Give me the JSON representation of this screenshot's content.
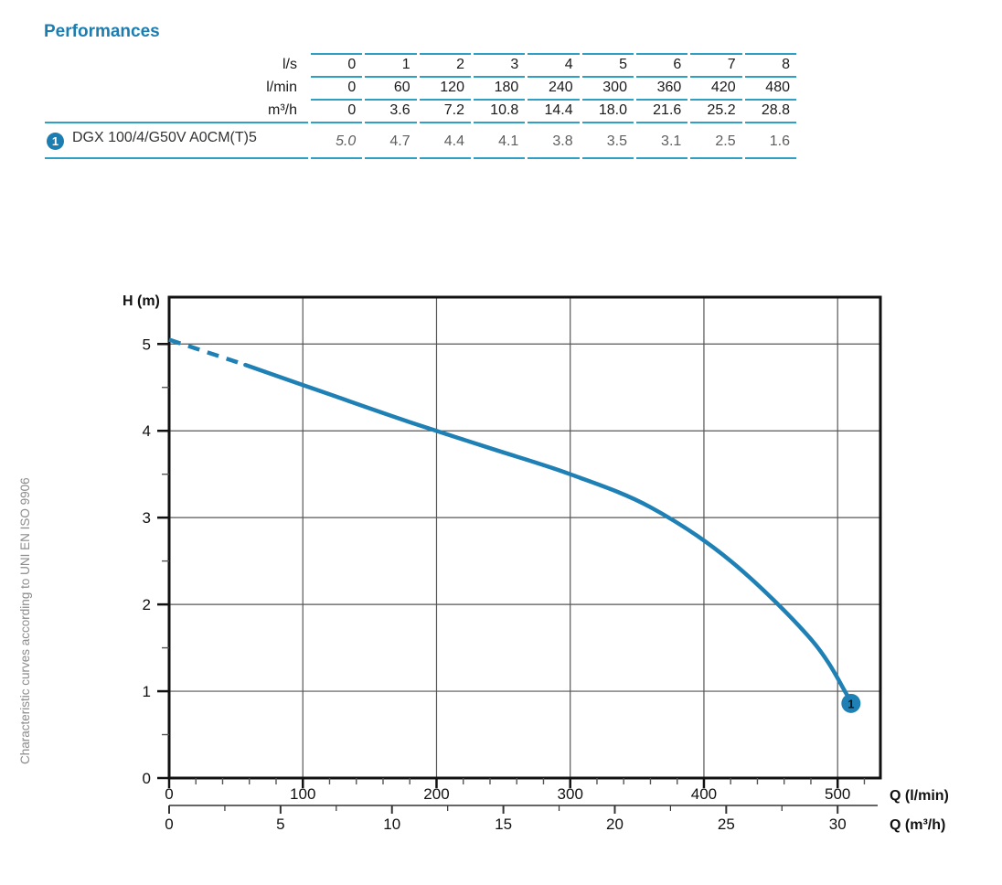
{
  "page": {
    "title": "Performances"
  },
  "side_note": "Characteristic curves according to UNI EN ISO 9906",
  "colors": {
    "accent": "#1c7db1",
    "table_line": "#2f9fc4",
    "curve": "#1e80b4",
    "grid": "#565656",
    "axis": "#111111",
    "pump_values_text": "#5e5e5e",
    "side_note_text": "#8c8c8c"
  },
  "table": {
    "unit_rows": [
      {
        "label": "l/s",
        "values": [
          "0",
          "1",
          "2",
          "3",
          "4",
          "5",
          "6",
          "7",
          "8"
        ]
      },
      {
        "label": "l/min",
        "values": [
          "0",
          "60",
          "120",
          "180",
          "240",
          "300",
          "360",
          "420",
          "480"
        ]
      },
      {
        "label": "m³/h",
        "values": [
          "0",
          "3.6",
          "7.2",
          "10.8",
          "14.4",
          "18.0",
          "21.6",
          "25.2",
          "28.8"
        ]
      }
    ],
    "pump_row": {
      "marker": "1",
      "name": "DGX 100/4/G50V A0CM(T)5",
      "values": [
        "5.0",
        "4.7",
        "4.4",
        "4.1",
        "3.8",
        "3.5",
        "3.1",
        "2.5",
        "1.6"
      ],
      "italic_first": true
    }
  },
  "chart_data": {
    "type": "line",
    "title": "",
    "xlabel": "Q (l/min)",
    "x2label": "Q (m³/h)",
    "ylabel": "H (m)",
    "x_unit": "l/min",
    "xlim": [
      0,
      532
    ],
    "ylim": [
      0,
      5.54
    ],
    "x_ticks": [
      0,
      100,
      200,
      300,
      400,
      500
    ],
    "x_minor_step": 20,
    "y_ticks": [
      0,
      1,
      2,
      3,
      4,
      5
    ],
    "y_minor_step": 0.5,
    "x2_ticks": [
      0,
      5,
      10,
      15,
      20,
      25,
      30
    ],
    "x2_minor_step": 2.5,
    "x2_to_x_factor": 16.6667,
    "grid": true,
    "legend_position": "none",
    "series": [
      {
        "name": "DGX 100/4/G50V A0CM(T)5",
        "marker_label": "1",
        "dashed_points": [
          [
            0,
            5.05
          ],
          [
            57,
            4.76
          ]
        ],
        "solid_points": [
          [
            57,
            4.76
          ],
          [
            120,
            4.42
          ],
          [
            180,
            4.1
          ],
          [
            240,
            3.8
          ],
          [
            300,
            3.5
          ],
          [
            360,
            3.12
          ],
          [
            420,
            2.5
          ],
          [
            480,
            1.6
          ],
          [
            507,
            0.96
          ]
        ],
        "end_marker": {
          "x": 510,
          "y": 0.86
        }
      }
    ]
  }
}
